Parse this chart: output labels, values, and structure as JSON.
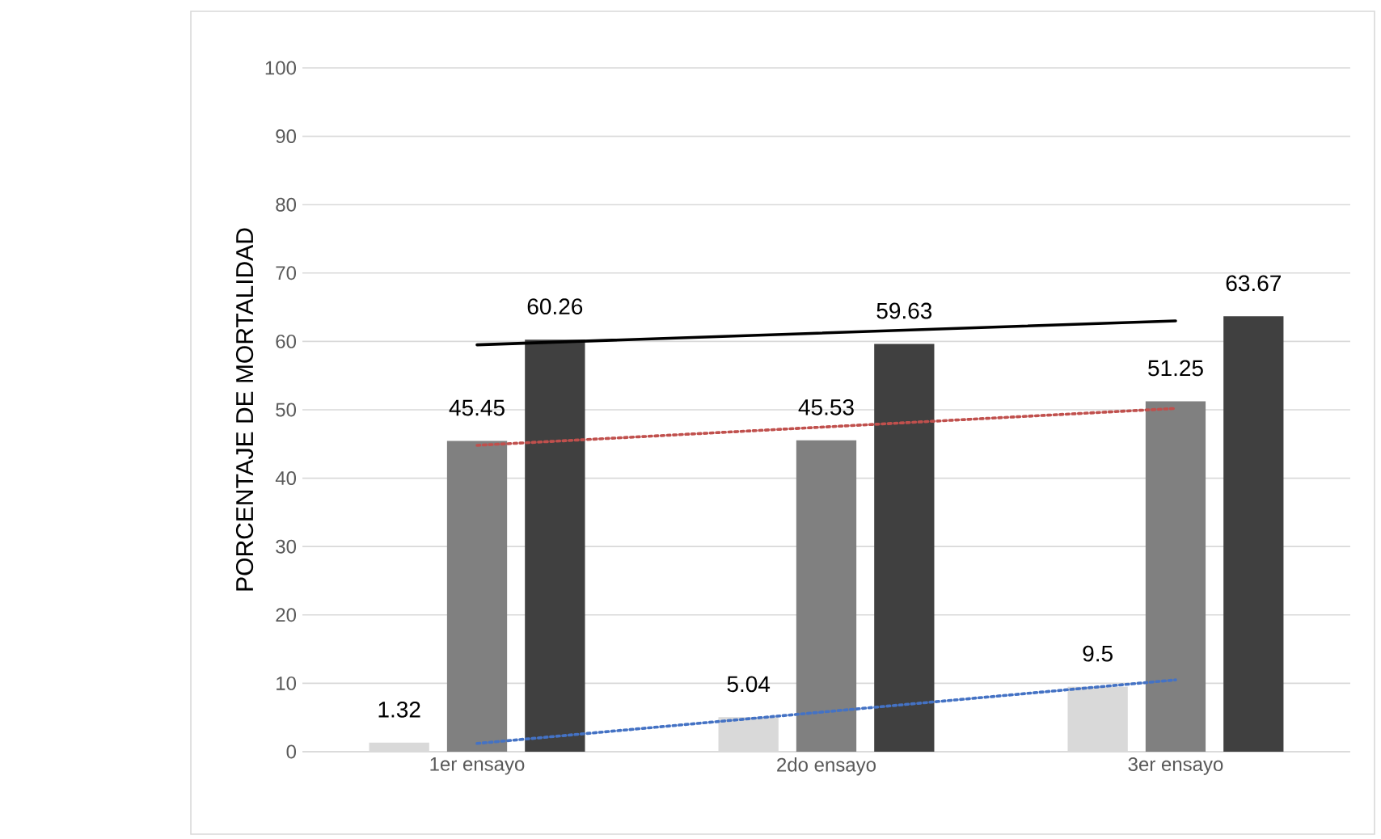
{
  "chart_data": {
    "type": "bar",
    "ylabel": "PORCENTAJE DE MORTALIDAD",
    "categories": [
      "1er ensayo",
      "2do ensayo",
      "3er ensayo"
    ],
    "series": [
      {
        "color": "#d9d9d9",
        "values": [
          1.32,
          5.04,
          9.5
        ],
        "value_labels": [
          "1.32",
          "5.04",
          "9.5"
        ]
      },
      {
        "color": "#808080",
        "values": [
          45.45,
          45.53,
          51.25
        ],
        "value_labels": [
          "45.45",
          "45.53",
          "51.25"
        ]
      },
      {
        "color": "#404040",
        "values": [
          60.26,
          59.63,
          63.67
        ],
        "value_labels": [
          "60.26",
          "59.63",
          "63.67"
        ]
      },
      {
        "type": "line",
        "color": "#4472c4",
        "line_style": "dotted",
        "x": [
          "1er ensayo",
          "3er ensayo"
        ],
        "values": [
          1.2,
          10.5
        ]
      },
      {
        "type": "line",
        "color": "#c0504d",
        "line_style": "dotted",
        "x": [
          "1er ensayo",
          "3er ensayo"
        ],
        "values": [
          44.8,
          50.2
        ]
      },
      {
        "type": "line",
        "color": "#000000",
        "line_style": "solid",
        "x": [
          "1er ensayo",
          "3er ensayo"
        ],
        "values": [
          59.5,
          63.0
        ]
      }
    ],
    "ylim": [
      0,
      100
    ],
    "yticks": [
      0,
      10,
      20,
      30,
      40,
      50,
      60,
      70,
      80,
      90,
      100
    ],
    "grid": "y"
  }
}
